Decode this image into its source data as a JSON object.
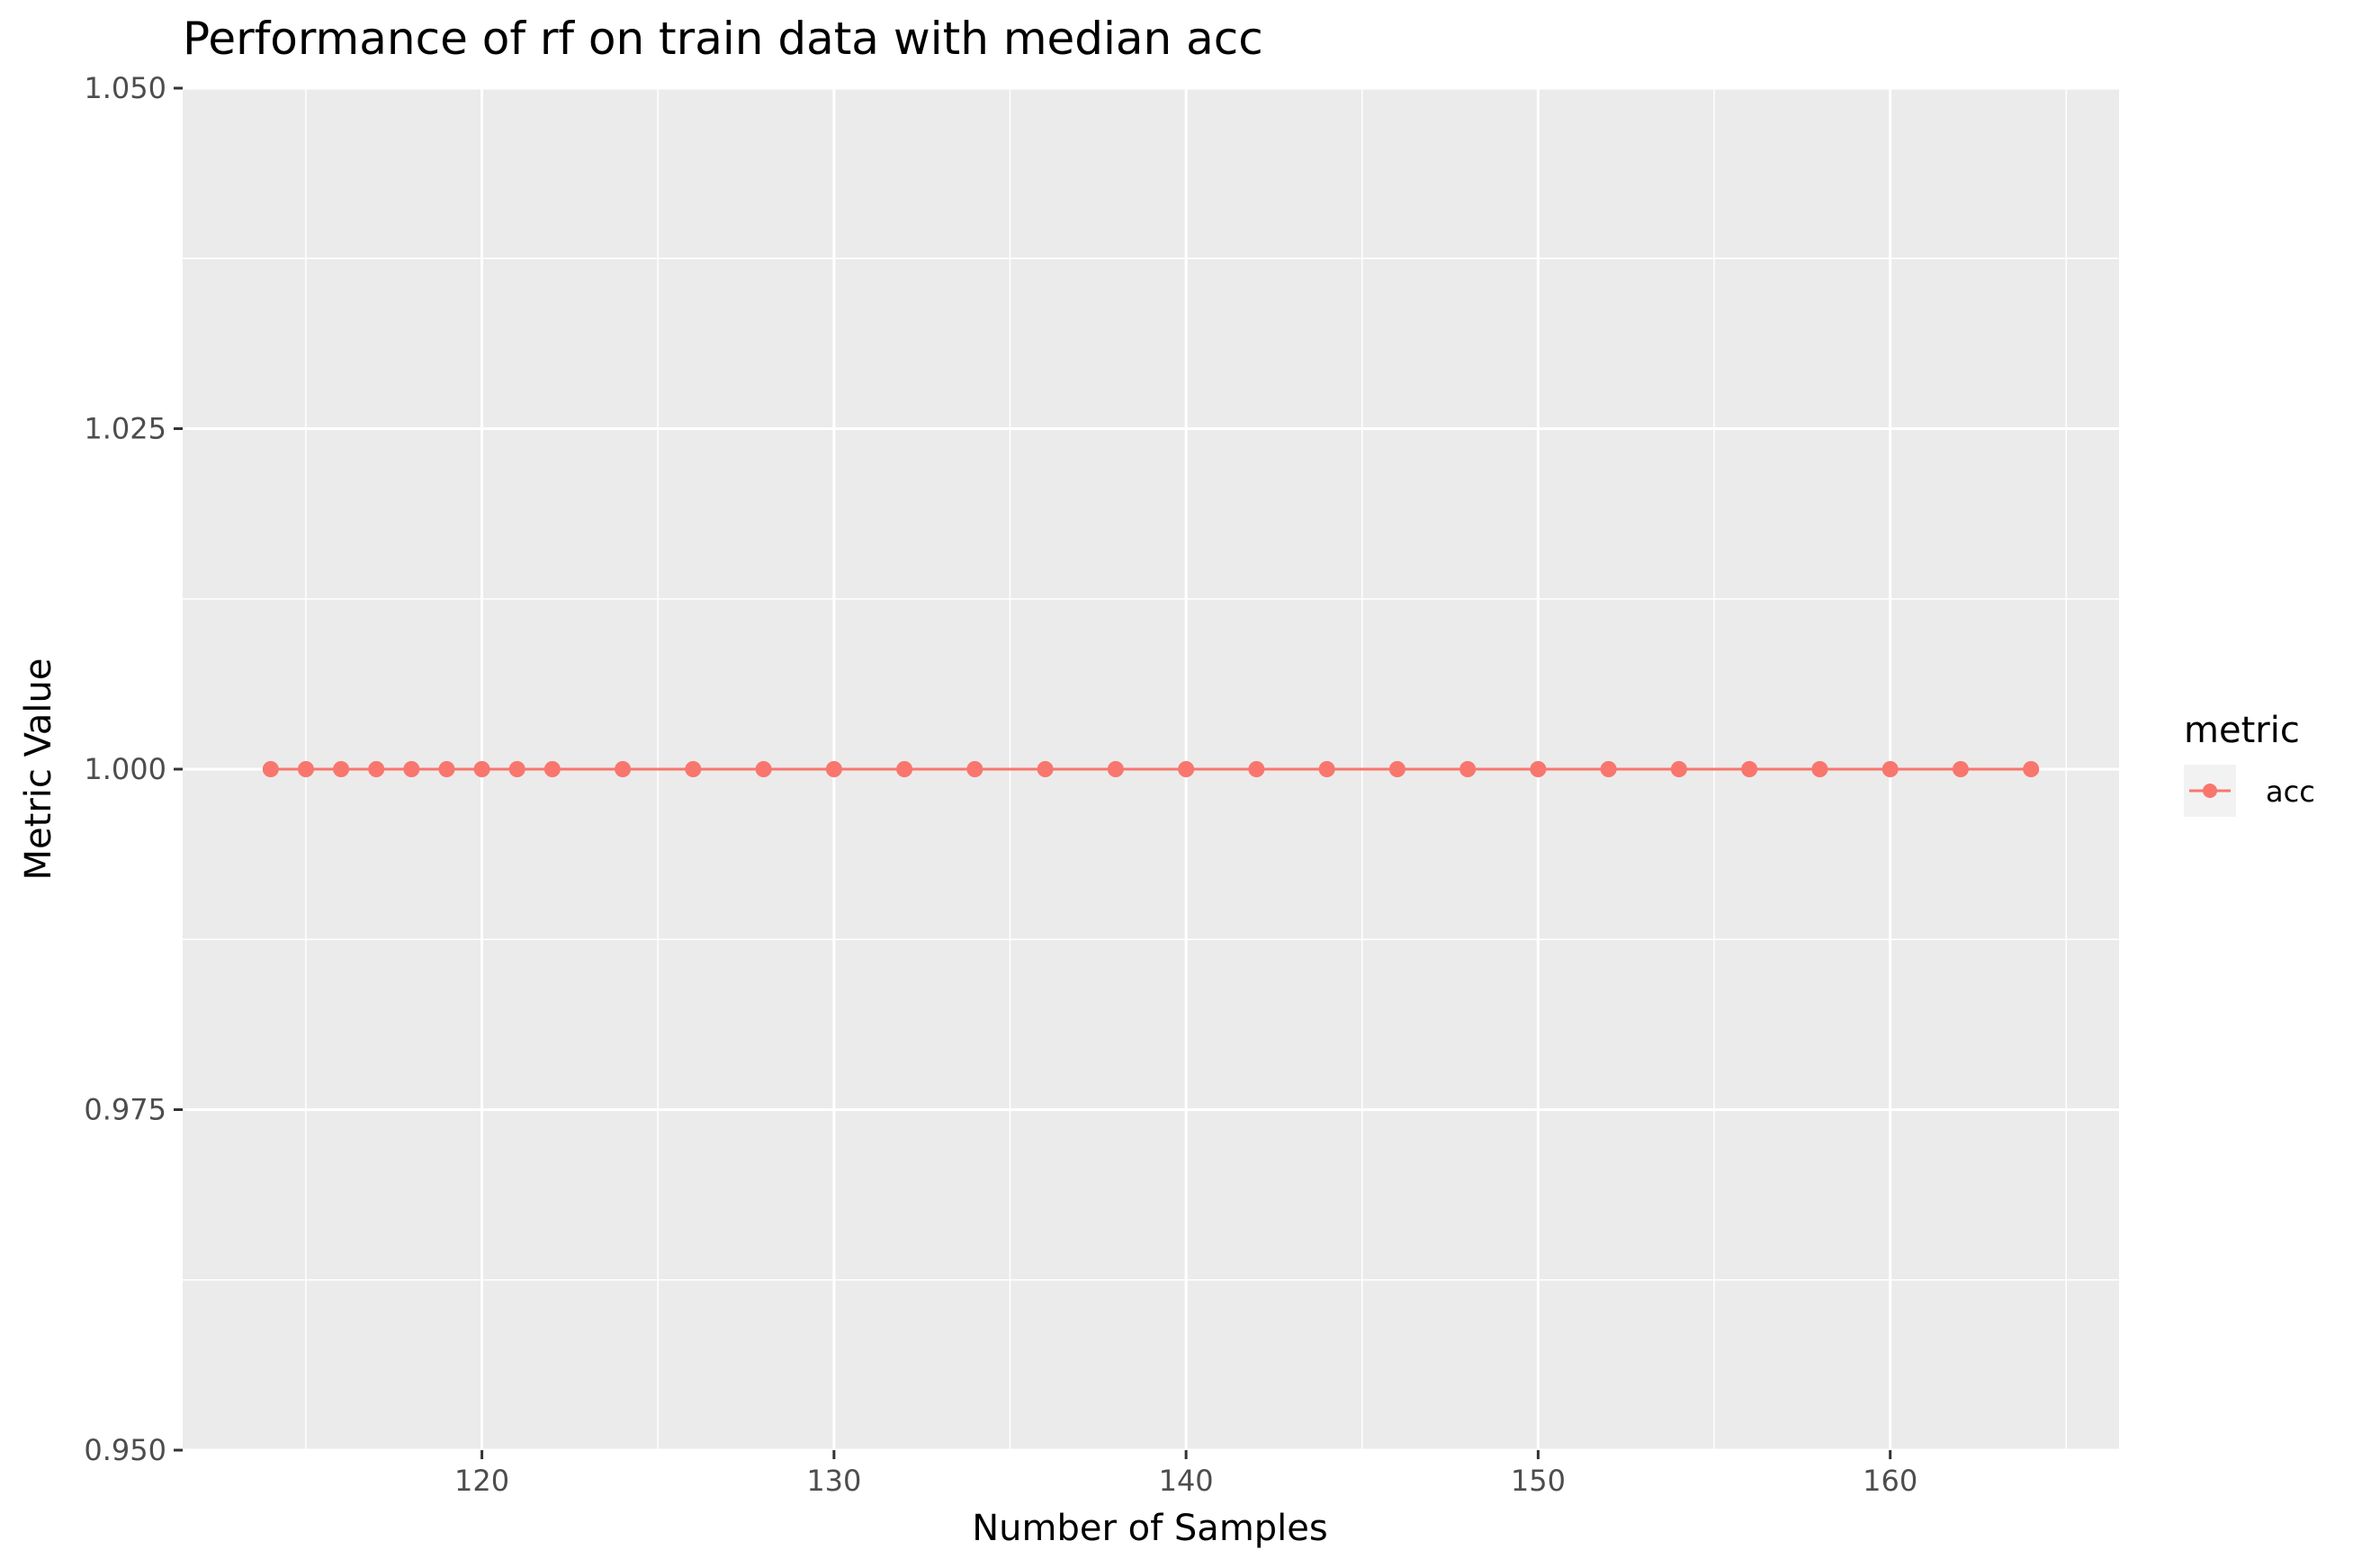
{
  "chart_data": {
    "type": "line",
    "title": "Performance of rf on train data with median acc",
    "xlabel": "Number of Samples",
    "ylabel": "Metric Value",
    "xlim": [
      111.5,
      166.5
    ],
    "ylim": [
      0.95,
      1.05
    ],
    "x_ticks": [
      120,
      130,
      140,
      150,
      160
    ],
    "x_tick_labels": [
      "120",
      "130",
      "140",
      "150",
      "160"
    ],
    "y_ticks": [
      0.95,
      0.975,
      1.0,
      1.025,
      1.05
    ],
    "y_tick_labels": [
      "0.950",
      "0.975",
      "1.000",
      "1.025",
      "1.050"
    ],
    "grid": true,
    "legend": {
      "title": "metric",
      "position": "right",
      "entries": [
        "acc"
      ]
    },
    "series": [
      {
        "name": "acc",
        "color": "#F8766D",
        "x": [
          114,
          115,
          116,
          117,
          118,
          119,
          120,
          121,
          122,
          124,
          126,
          128,
          130,
          132,
          134,
          136,
          138,
          140,
          142,
          144,
          146,
          148,
          150,
          152,
          154,
          156,
          158,
          160,
          162,
          164
        ],
        "y": [
          1.0,
          1.0,
          1.0,
          1.0,
          1.0,
          1.0,
          1.0,
          1.0,
          1.0,
          1.0,
          1.0,
          1.0,
          1.0,
          1.0,
          1.0,
          1.0,
          1.0,
          1.0,
          1.0,
          1.0,
          1.0,
          1.0,
          1.0,
          1.0,
          1.0,
          1.0,
          1.0,
          1.0,
          1.0,
          1.0
        ]
      }
    ],
    "colors": {
      "panel": "#EBEBEB",
      "grid": "#FFFFFF",
      "series": "#F8766D",
      "tick": "#333333"
    }
  }
}
